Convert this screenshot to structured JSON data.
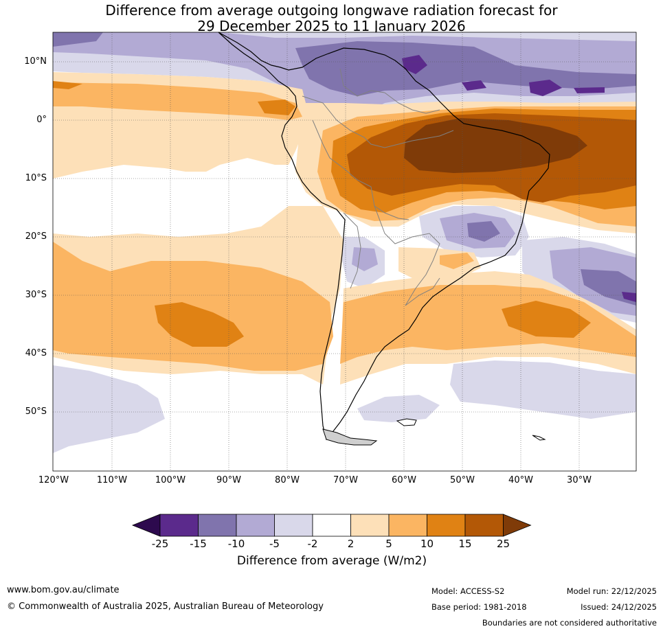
{
  "title": {
    "line1": "Difference from average outgoing longwave radiation forecast for",
    "line2": "29 December 2025 to 11 January 2026"
  },
  "map": {
    "region": "South America",
    "lat_labels": [
      "10°N",
      "0°",
      "10°S",
      "20°S",
      "30°S",
      "40°S",
      "50°S"
    ],
    "lon_labels": [
      "120°W",
      "110°W",
      "100°W",
      "90°W",
      "80°W",
      "70°W",
      "60°W",
      "50°W",
      "40°W",
      "30°W"
    ]
  },
  "colorbar": {
    "label": "Difference from average (W/m2)",
    "ticks": [
      "-25",
      "-15",
      "-10",
      "-5",
      "-2",
      "2",
      "5",
      "10",
      "15",
      "25"
    ],
    "colors": {
      "below_min": "#2d0a4e",
      "lt_m15": "#5b2a8c",
      "m15_m10": "#8074ad",
      "m10_m5": "#b2aad4",
      "m5_m2": "#d9d8ea",
      "m2_2": "#ffffff",
      "p2_5": "#fde0b8",
      "p5_10": "#fbb562",
      "p10_15": "#e08214",
      "p15_25": "#b35806",
      "above_max": "#7f3b08"
    }
  },
  "footer": {
    "url": "www.bom.gov.au/climate",
    "copyright": "© Commonwealth of Australia 2025, Australian Bureau of Meteorology",
    "model": "Model: ACCESS-S2",
    "base_period": "Base period: 1981-2018",
    "model_run": "Model run: 22/12/2025",
    "issued": "Issued: 24/12/2025",
    "disclaimer": "Boundaries are not considered authoritative"
  }
}
